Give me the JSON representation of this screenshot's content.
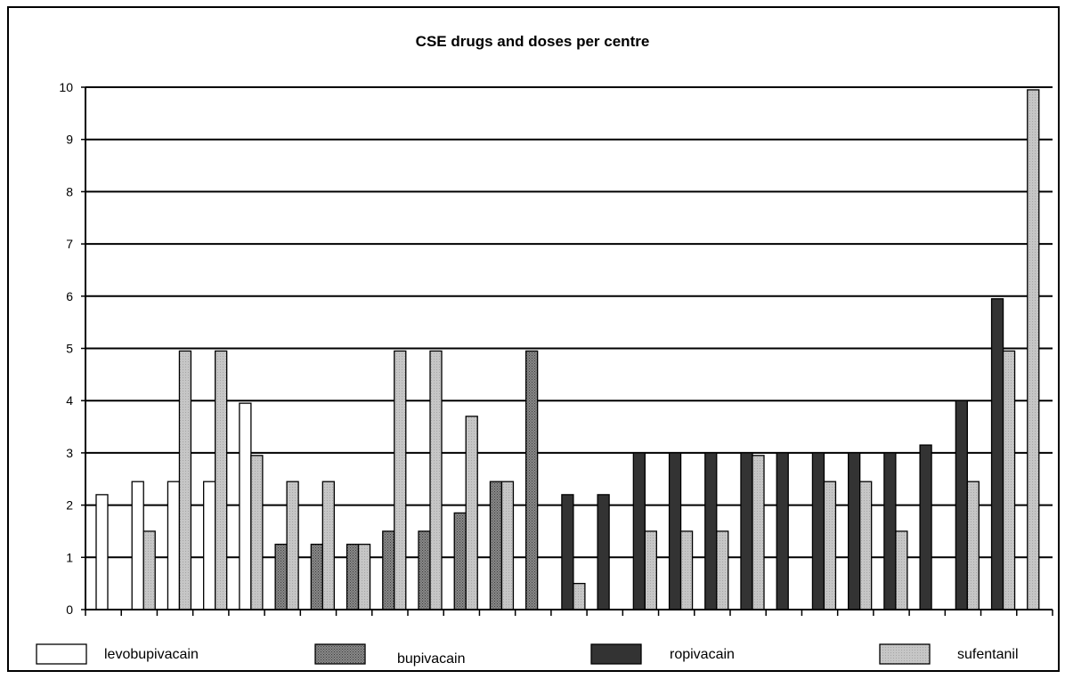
{
  "chart_data": {
    "type": "bar",
    "title": "CSE drugs and doses per centre",
    "xlabel": "",
    "ylabel": "",
    "ylim": [
      0,
      10
    ],
    "yticks": [
      "0",
      "1",
      "2",
      "3",
      "4",
      "5",
      "6",
      "7",
      "8",
      "9",
      "10"
    ],
    "grid": true,
    "legend_position": "bottom",
    "categories": [
      "",
      "",
      "",
      "",
      "",
      "",
      "",
      "",
      "",
      "",
      "",
      "",
      "",
      "",
      "",
      "",
      "",
      "",
      "",
      "",
      "",
      "",
      "",
      "",
      "",
      "",
      ""
    ],
    "series": [
      {
        "name": "levobupivacain",
        "color": "#ffffff",
        "pattern": "none",
        "values": [
          2.2,
          2.45,
          2.45,
          2.45,
          3.95,
          null,
          null,
          null,
          null,
          null,
          null,
          null,
          null,
          null,
          null,
          null,
          null,
          null,
          null,
          null,
          null,
          null,
          null,
          null,
          null,
          null,
          null
        ]
      },
      {
        "name": "bupivacain",
        "color": "#777777",
        "pattern": "dotted",
        "values": [
          null,
          null,
          null,
          null,
          null,
          1.25,
          1.25,
          1.25,
          1.5,
          1.5,
          1.85,
          2.45,
          4.95,
          null,
          null,
          null,
          null,
          null,
          null,
          null,
          null,
          null,
          null,
          null,
          null,
          null,
          null
        ]
      },
      {
        "name": "ropivacain",
        "color": "#333333",
        "pattern": "solid",
        "values": [
          null,
          null,
          null,
          null,
          null,
          null,
          null,
          null,
          null,
          null,
          null,
          null,
          null,
          2.2,
          2.2,
          3.0,
          3.0,
          3.0,
          3.0,
          3.0,
          3.0,
          3.0,
          3.0,
          3.15,
          4.0,
          5.95,
          null
        ]
      },
      {
        "name": "sufentanil",
        "color": "#c0c0c0",
        "pattern": "light",
        "values": [
          null,
          1.5,
          4.95,
          4.95,
          2.95,
          2.45,
          2.45,
          1.25,
          4.95,
          4.95,
          3.7,
          2.45,
          null,
          0.5,
          null,
          1.5,
          1.5,
          1.5,
          2.95,
          null,
          2.45,
          2.45,
          1.5,
          null,
          2.45,
          4.95,
          9.95
        ]
      }
    ]
  }
}
